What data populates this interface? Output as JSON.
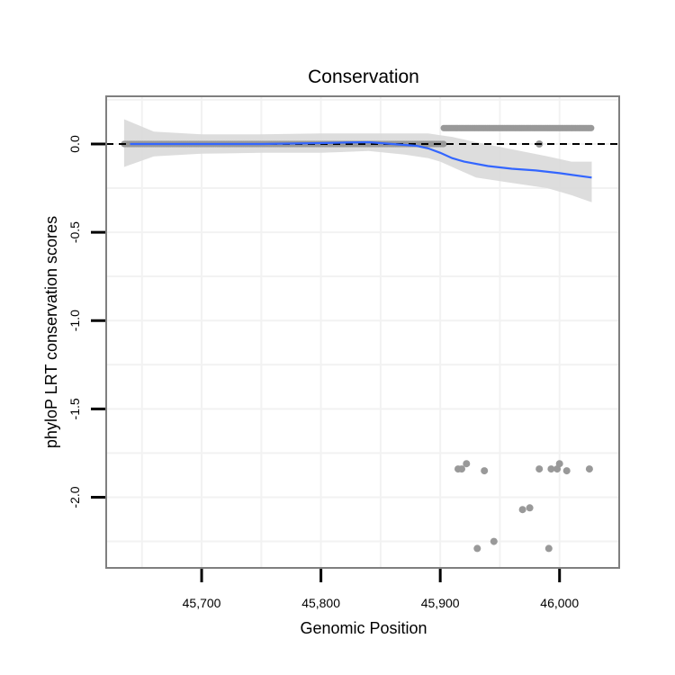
{
  "chart_data": {
    "type": "scatter",
    "title": "Conservation",
    "xlabel": "Genomic Position",
    "ylabel": "phyloP LRT conservation scores",
    "xlim": [
      45620,
      46050
    ],
    "ylim": [
      -2.4,
      0.27
    ],
    "x_ticks": [
      45700,
      45800,
      45900,
      46000
    ],
    "x_tick_labels": [
      "45,700",
      "45,800",
      "45,900",
      "46,000"
    ],
    "y_ticks": [
      0.0,
      -0.5,
      -1.0,
      -1.5,
      -2.0
    ],
    "y_tick_labels": [
      "0.0",
      "-0.5",
      "-1.0",
      "-1.5",
      "-2.0"
    ],
    "grid": true,
    "reference_line": {
      "y": 0,
      "style": "dashed",
      "color": "#000000"
    },
    "colors": {
      "points": "#999999",
      "smooth": "#3366FF",
      "ribbon": "#d9d9d9",
      "panel_border": "#7f7f7f",
      "grid": "#f2f2f2"
    },
    "series": [
      {
        "name": "near-zero scores",
        "kind": "point-run",
        "x_range": [
          45635,
          45903
        ],
        "y": 0.0
      },
      {
        "name": "positive scores",
        "kind": "point-run",
        "x_range": [
          45903,
          46027
        ],
        "y": 0.09
      },
      {
        "name": "negative scores",
        "kind": "points",
        "x": [
          45915,
          45918,
          45922,
          45931,
          45937,
          45945,
          45969,
          45975,
          45983,
          45983,
          45991,
          45993,
          45998,
          46000,
          46006,
          46025
        ],
        "y": [
          -1.84,
          -1.84,
          -1.81,
          -2.29,
          -1.85,
          -2.25,
          -2.07,
          -2.06,
          -1.84,
          0.0,
          -2.29,
          -1.84,
          -1.84,
          -1.81,
          -1.85,
          -1.84
        ]
      },
      {
        "name": "smooth fit",
        "kind": "line",
        "x": [
          45640,
          45660,
          45700,
          45750,
          45800,
          45820,
          45840,
          45860,
          45880,
          45890,
          45900,
          45910,
          45920,
          45940,
          45960,
          45980,
          46000,
          46027
        ],
        "y": [
          0.0,
          0.0,
          0.0,
          0.0,
          0.005,
          0.008,
          0.01,
          0.0,
          -0.01,
          -0.025,
          -0.05,
          -0.08,
          -0.1,
          -0.125,
          -0.14,
          -0.15,
          -0.165,
          -0.19
        ]
      },
      {
        "name": "confidence band",
        "kind": "band",
        "x": [
          45635,
          45660,
          45700,
          45750,
          45800,
          45840,
          45870,
          45890,
          45900,
          45910,
          45930,
          45960,
          45990,
          46010,
          46027
        ],
        "ymin": [
          -0.13,
          -0.07,
          -0.055,
          -0.05,
          -0.05,
          -0.04,
          -0.06,
          -0.08,
          -0.1,
          -0.13,
          -0.19,
          -0.22,
          -0.25,
          -0.29,
          -0.33
        ],
        "ymax": [
          0.14,
          0.07,
          0.055,
          0.055,
          0.06,
          0.06,
          0.06,
          0.06,
          0.05,
          0.04,
          0.01,
          -0.03,
          -0.07,
          -0.1,
          -0.1
        ]
      }
    ]
  }
}
